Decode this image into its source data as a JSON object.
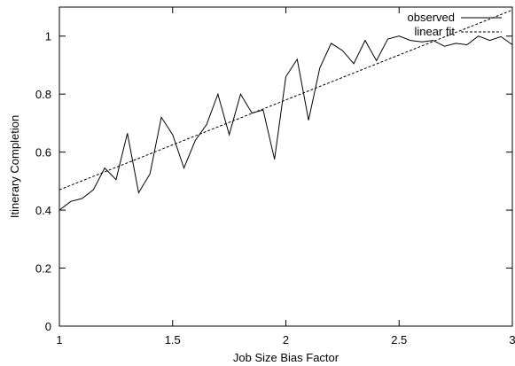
{
  "chart_data": {
    "type": "line",
    "xlabel": "Job Size Bias Factor",
    "ylabel": "Itinerary Completion",
    "xlim": [
      1,
      3
    ],
    "ylim": [
      0,
      1.1
    ],
    "xticks": [
      1,
      1.5,
      2,
      2.5,
      3
    ],
    "xtick_labels": [
      "1",
      "1.5",
      "2",
      "2.5",
      "3"
    ],
    "yticks": [
      0,
      0.2,
      0.4,
      0.6,
      0.8,
      1.0
    ],
    "ytick_labels": [
      "0",
      "0.2",
      "0.4",
      "0.6",
      "0.8",
      "1"
    ],
    "grid": false,
    "legend_position": "top-right",
    "series": [
      {
        "name": "observed",
        "style": "solid",
        "color": "#000000",
        "x": [
          1.0,
          1.05,
          1.1,
          1.15,
          1.2,
          1.25,
          1.3,
          1.35,
          1.4,
          1.45,
          1.5,
          1.55,
          1.6,
          1.65,
          1.7,
          1.75,
          1.8,
          1.85,
          1.9,
          1.95,
          2.0,
          2.05,
          2.1,
          2.15,
          2.2,
          2.25,
          2.3,
          2.35,
          2.4,
          2.45,
          2.5,
          2.55,
          2.6,
          2.65,
          2.7,
          2.75,
          2.8,
          2.85,
          2.9,
          2.95,
          3.0
        ],
        "y": [
          0.4,
          0.43,
          0.44,
          0.47,
          0.545,
          0.505,
          0.665,
          0.46,
          0.525,
          0.72,
          0.66,
          0.545,
          0.64,
          0.695,
          0.8,
          0.66,
          0.8,
          0.735,
          0.745,
          0.575,
          0.86,
          0.92,
          0.71,
          0.89,
          0.975,
          0.95,
          0.905,
          0.985,
          0.915,
          0.99,
          1.0,
          0.985,
          0.98,
          0.985,
          0.965,
          0.975,
          0.97,
          1.0,
          0.985,
          0.998,
          0.97
        ]
      },
      {
        "name": "linear fit",
        "style": "dashed",
        "color": "#000000",
        "x": [
          1.0,
          3.0
        ],
        "y": [
          0.47,
          1.09
        ]
      }
    ]
  }
}
